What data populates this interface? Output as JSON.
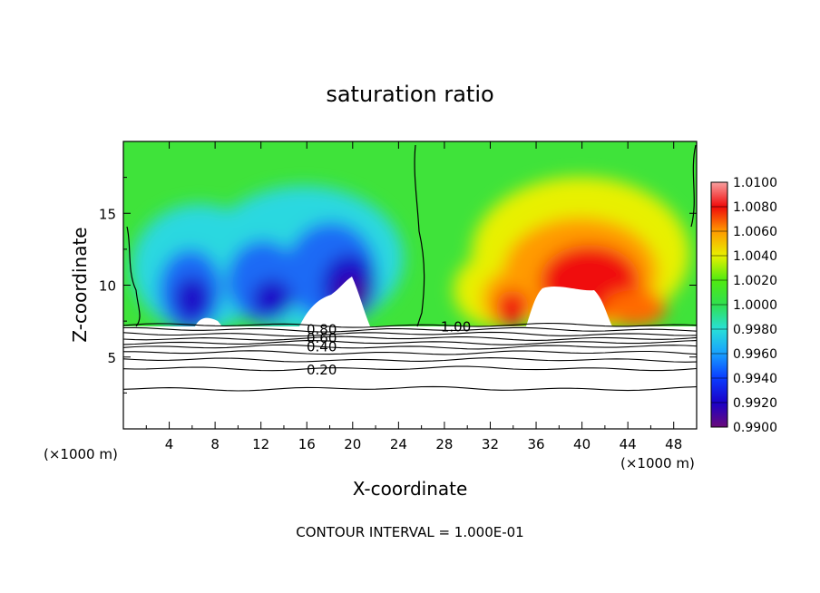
{
  "chart_data": {
    "type": "heatmap",
    "title": "saturation ratio",
    "xlabel": "X-coordinate",
    "ylabel": "Z-coordinate",
    "x_unit_label": "(×1000 m)",
    "y_unit_label": "(×1000 m)",
    "footer": "CONTOUR INTERVAL = 1.000E-01",
    "xlim": [
      0,
      50
    ],
    "ylim": [
      0,
      20
    ],
    "x_ticks": [
      "4",
      "8",
      "12",
      "16",
      "20",
      "24",
      "28",
      "32",
      "36",
      "40",
      "44",
      "48"
    ],
    "x_tick_values": [
      4,
      8,
      12,
      16,
      20,
      24,
      28,
      32,
      36,
      40,
      44,
      48
    ],
    "y_ticks": [
      "5",
      "10",
      "15"
    ],
    "y_tick_values": [
      5,
      10,
      15
    ],
    "colorbar": {
      "range": [
        0.99,
        1.01
      ],
      "labels": [
        "1.0100",
        "1.0080",
        "1.0060",
        "1.0040",
        "1.0020",
        "1.0000",
        "0.9980",
        "0.9960",
        "0.9940",
        "0.9920",
        "0.9900"
      ],
      "levels": [
        1.01,
        1.008,
        1.006,
        1.004,
        1.002,
        1.0,
        0.998,
        0.996,
        0.994,
        0.992,
        0.99
      ]
    },
    "contour_lines": [
      {
        "label": "1.00",
        "level": 1.0,
        "x": 29,
        "y": 7.1
      },
      {
        "label": "0.80",
        "level": 0.8,
        "x": 17.3,
        "y": 6.9
      },
      {
        "label": "0.60",
        "level": 0.6,
        "x": 17.3,
        "y": 6.3
      },
      {
        "label": "0.40",
        "level": 0.4,
        "x": 17.3,
        "y": 5.7
      },
      {
        "label": "0.20",
        "level": 0.2,
        "x": 17.3,
        "y": 4.1
      }
    ],
    "contour_levels_z": [
      7.2,
      6.9,
      6.6,
      6.3,
      6.0,
      5.7,
      5.3,
      4.8,
      4.2,
      2.8
    ]
  }
}
